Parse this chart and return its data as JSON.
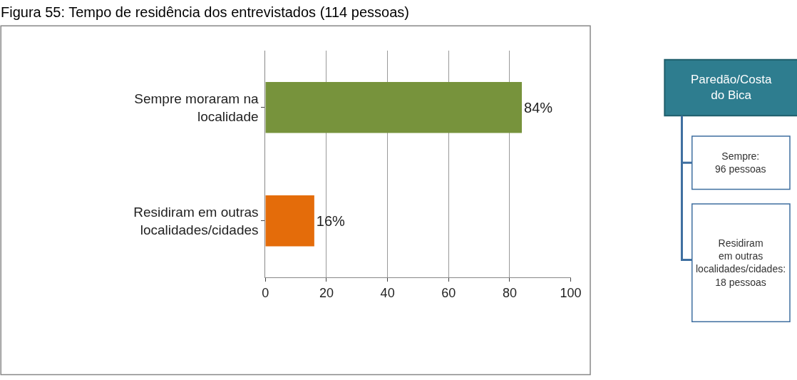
{
  "chart_data": [
    {
      "type": "bar",
      "title": "Figura 55: Tempo de residência dos entrevistados (114 pessoas)",
      "orientation": "horizontal",
      "categories": [
        "Sempre moraram na localidade",
        "Residiram em outras localidades/cidades"
      ],
      "values": [
        84,
        16
      ],
      "colors": [
        "#77933c",
        "#e46c0a"
      ],
      "value_labels": [
        "84%",
        "16%"
      ],
      "xlim": [
        0,
        100
      ],
      "xticks": [
        0,
        20,
        40,
        60,
        80,
        100
      ],
      "grid": "x"
    },
    {
      "type": "other",
      "title": "Paredão/Costa do Bica",
      "annotations": [
        "Sempre:",
        "96 pessoas",
        "Residiram em outras localidades/cidades:",
        "18 pessoas"
      ]
    }
  ]
}
